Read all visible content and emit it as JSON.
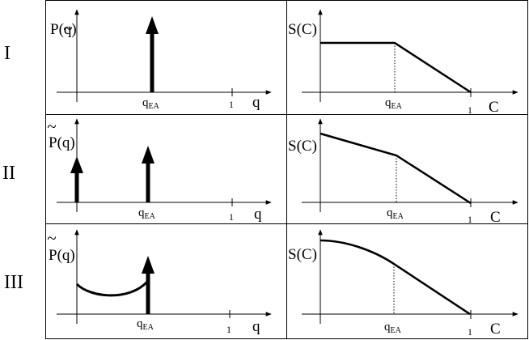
{
  "rows": [
    {
      "label": "I",
      "left": {
        "ylabel": "P(q)",
        "tick_qea": "q",
        "tick_qea_sub": "EA",
        "tick_one": "1",
        "xlabel": "q"
      },
      "right": {
        "ylabel": "S(C)",
        "tick_qea": "q",
        "tick_qea_sub": "EA",
        "tick_one": "1",
        "xlabel": "C"
      }
    },
    {
      "label": "II",
      "left": {
        "ylabel": "P(q)",
        "tick_qea": "q",
        "tick_qea_sub": "EA",
        "tick_one": "1",
        "xlabel": "q"
      },
      "right": {
        "ylabel": "S(C)",
        "tick_qea": "q",
        "tick_qea_sub": "EA",
        "tick_one": "1",
        "xlabel": "C"
      }
    },
    {
      "label": "III",
      "left": {
        "ylabel": "P(q)",
        "tick_qea": "q",
        "tick_qea_sub": "EA",
        "tick_one": "1",
        "xlabel": "q"
      },
      "right": {
        "ylabel": "S(C)",
        "tick_qea": "q",
        "tick_qea_sub": "EA",
        "tick_one": "1",
        "xlabel": "C"
      }
    }
  ]
}
